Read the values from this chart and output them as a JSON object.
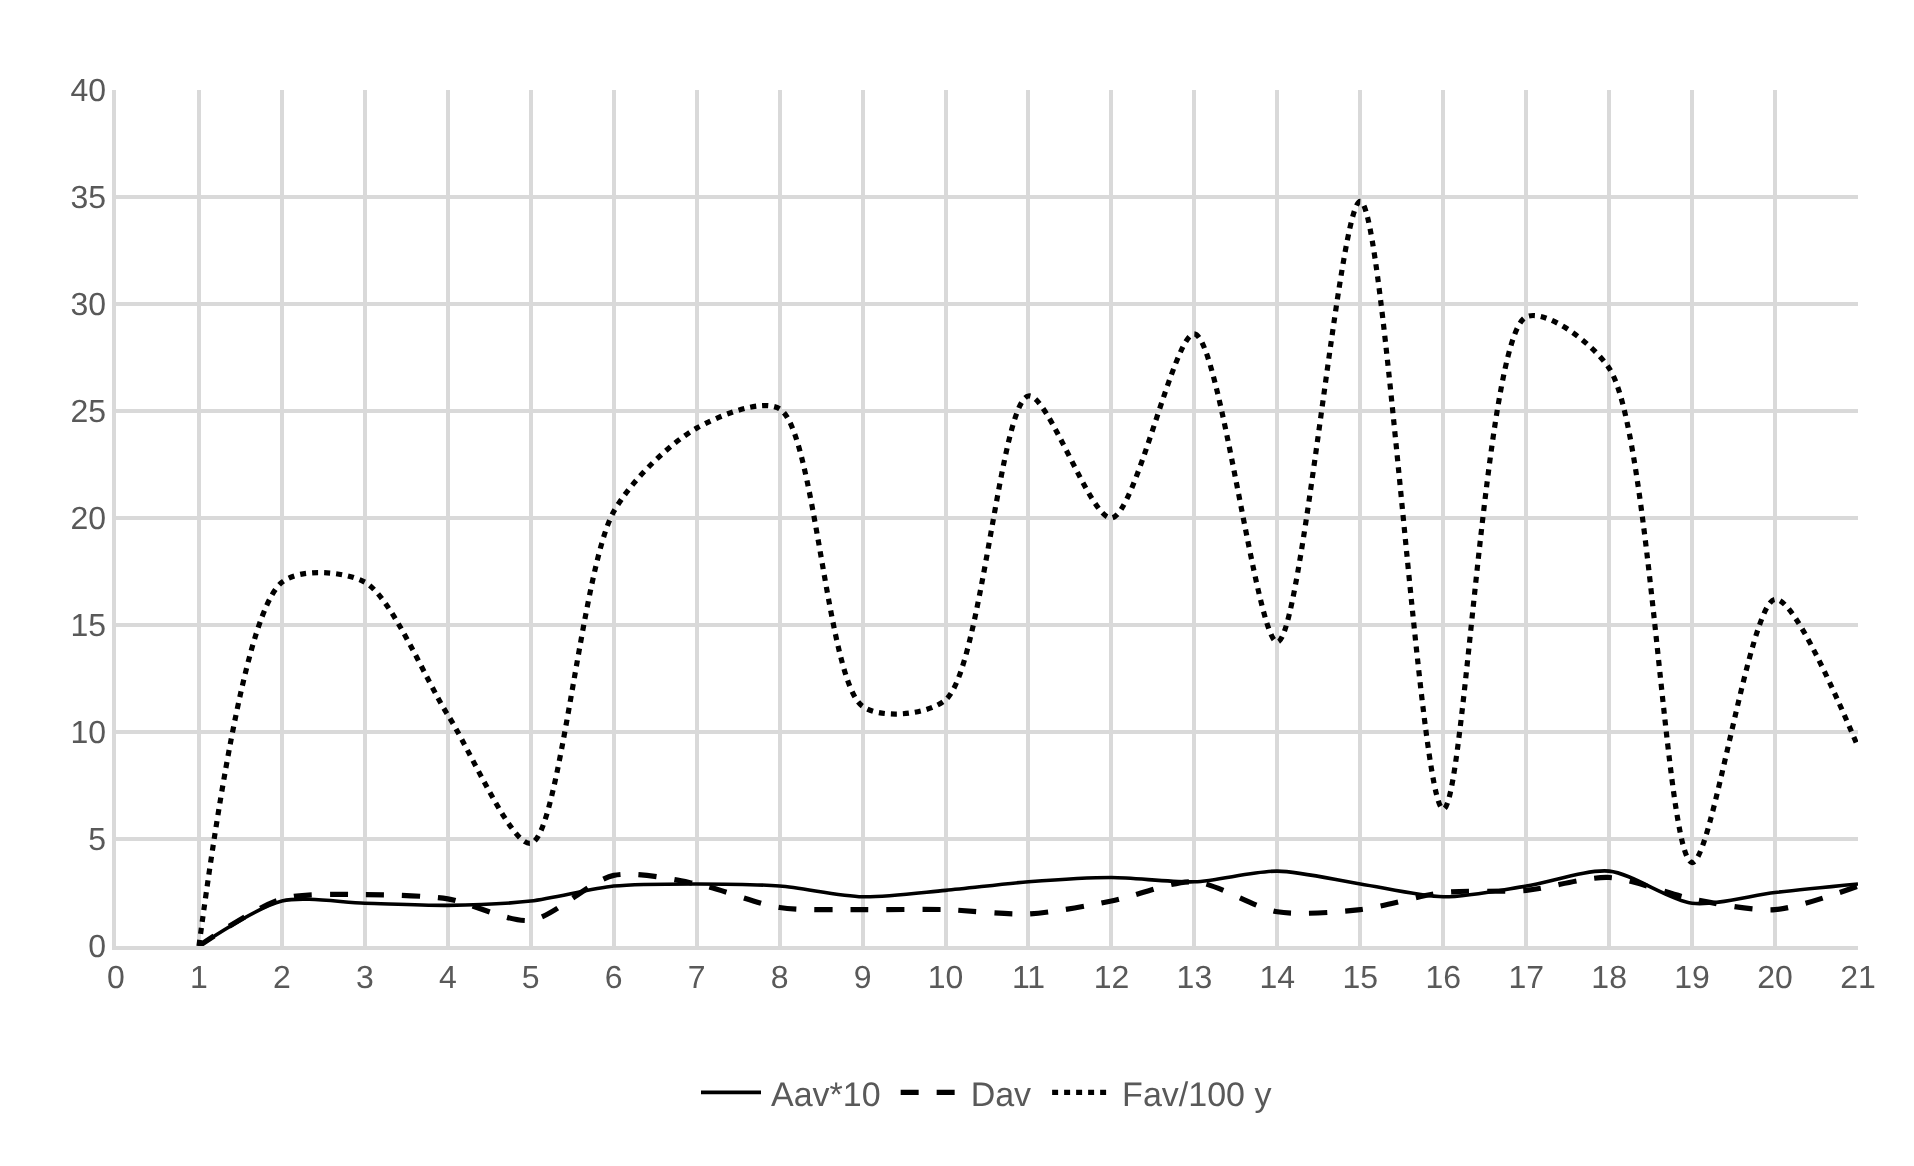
{
  "chart_data": {
    "type": "line",
    "x": [
      1,
      2,
      3,
      4,
      5,
      6,
      7,
      8,
      9,
      10,
      11,
      12,
      13,
      14,
      15,
      16,
      17,
      18,
      19,
      20,
      21
    ],
    "series": [
      {
        "name": "Aav*10",
        "color": "#000000",
        "line_style": "solid",
        "values": [
          0,
          2.1,
          2.0,
          1.9,
          2.1,
          2.8,
          2.9,
          2.8,
          2.3,
          2.6,
          3.0,
          3.2,
          3.0,
          3.5,
          2.9,
          2.3,
          2.8,
          3.5,
          2.0,
          2.5,
          2.9
        ]
      },
      {
        "name": "Dav",
        "color": "#000000",
        "line_style": "dashed",
        "values": [
          0,
          2.2,
          2.4,
          2.2,
          1.2,
          3.3,
          2.9,
          1.8,
          1.7,
          1.7,
          1.5,
          2.1,
          3.0,
          1.6,
          1.7,
          2.5,
          2.6,
          3.2,
          2.2,
          1.7,
          2.8
        ]
      },
      {
        "name": "Fav/100 y",
        "color": "#000000",
        "line_style": "dotted",
        "values": [
          0,
          17.0,
          17.0,
          10.8,
          4.8,
          20.3,
          24.2,
          25.1,
          11.2,
          11.5,
          25.7,
          20.0,
          28.6,
          14.2,
          34.8,
          6.4,
          29.4,
          27.0,
          3.9,
          16.2,
          9.3
        ]
      }
    ],
    "xlim": [
      0,
      21
    ],
    "xticks": [
      0,
      1,
      2,
      3,
      4,
      5,
      6,
      7,
      8,
      9,
      10,
      11,
      12,
      13,
      14,
      15,
      16,
      17,
      18,
      19,
      20,
      21
    ],
    "ylim": [
      0,
      40
    ],
    "yticks": [
      0,
      5,
      10,
      15,
      20,
      25,
      30,
      35,
      40
    ],
    "grid": true,
    "legend": "bottom",
    "marker": "none"
  }
}
